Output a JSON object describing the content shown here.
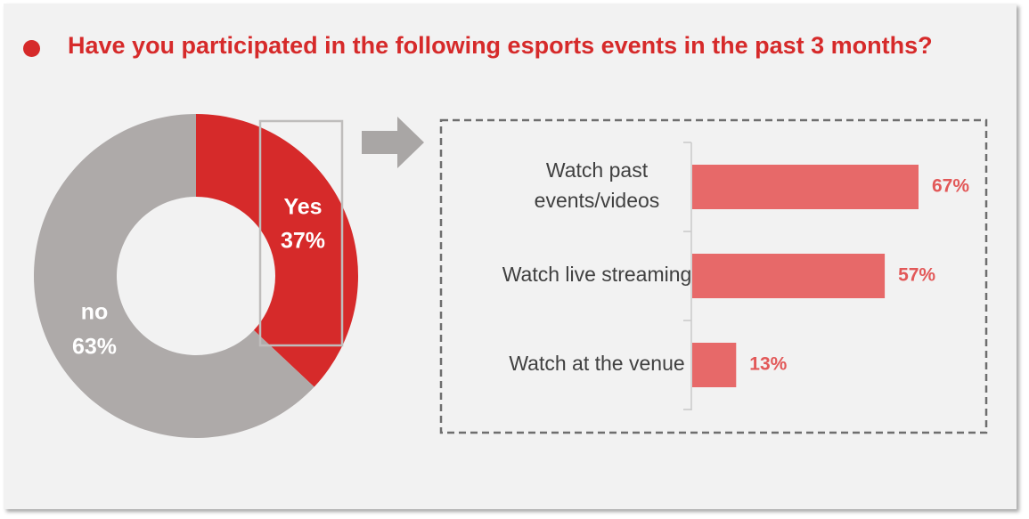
{
  "title": "Have you participated in the following esports events in the past 3 months?",
  "colors": {
    "accent": "#d62a2a",
    "donut_yes": "#d62a2a",
    "donut_no": "#aeaaa9",
    "bar": "#e76969",
    "bar_label": "#e25858"
  },
  "chart_data": [
    {
      "type": "pie",
      "style": "donut",
      "slices": [
        {
          "label": "Yes",
          "value": 37,
          "value_label": "37%"
        },
        {
          "label": "no",
          "value": 63,
          "value_label": "63%"
        }
      ]
    },
    {
      "type": "bar",
      "orientation": "horizontal",
      "categories": [
        "Watch past events/videos",
        "Watch live streaming",
        "Watch at the venue"
      ],
      "category_lines": [
        [
          "Watch past",
          "events/videos"
        ],
        [
          "Watch live streaming"
        ],
        [
          "Watch at the venue"
        ]
      ],
      "values": [
        67,
        57,
        13
      ],
      "value_labels": [
        "67%",
        "57%",
        "13%"
      ],
      "xlim": [
        0,
        100
      ]
    }
  ]
}
